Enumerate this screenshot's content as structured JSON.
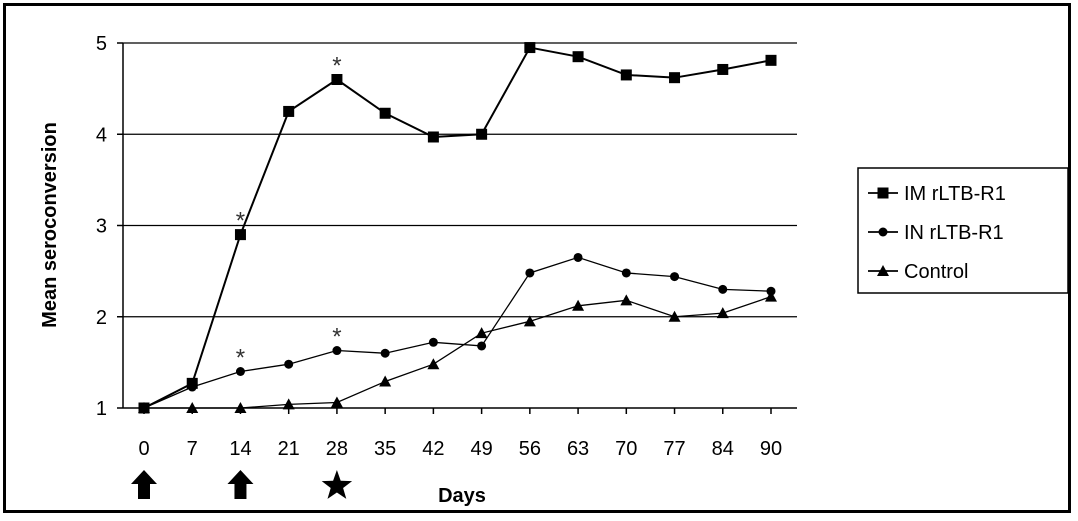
{
  "chart_data": {
    "type": "line",
    "xlabel": "Days",
    "ylabel": "Mean seroconversion",
    "x": [
      0,
      7,
      14,
      21,
      28,
      35,
      42,
      49,
      56,
      63,
      70,
      77,
      84,
      90
    ],
    "x_tick_labels": [
      "0",
      "7",
      "14",
      "21",
      "28",
      "35",
      "42",
      "49",
      "56",
      "63",
      "70",
      "77",
      "84",
      "90"
    ],
    "ylim": [
      1,
      5
    ],
    "y_ticks": [
      1,
      2,
      3,
      4,
      5
    ],
    "y_tick_labels": [
      "1",
      "2",
      "3",
      "4",
      "5"
    ],
    "grid": "horizontal",
    "legend_position": "right",
    "series": [
      {
        "name": "IM rLTB-R1",
        "marker": "square",
        "values": [
          1.0,
          1.27,
          2.9,
          4.25,
          4.6,
          4.23,
          3.97,
          4.0,
          4.95,
          4.85,
          4.65,
          4.62,
          4.71,
          4.81
        ]
      },
      {
        "name": "IN rLTB-R1",
        "marker": "circle",
        "values": [
          1.0,
          1.23,
          1.4,
          1.48,
          1.63,
          1.6,
          1.72,
          1.68,
          2.48,
          2.65,
          2.48,
          2.44,
          2.3,
          2.28
        ]
      },
      {
        "name": "Control",
        "marker": "triangle",
        "values": [
          1.0,
          1.0,
          1.0,
          1.04,
          1.06,
          1.29,
          1.48,
          1.82,
          1.95,
          2.12,
          2.18,
          2.0,
          2.04,
          2.22
        ]
      }
    ],
    "annotations": [
      {
        "text": "*",
        "x": 14,
        "y": 2.9
      },
      {
        "text": "*",
        "x": 28,
        "y": 4.6
      },
      {
        "text": "*",
        "x": 14,
        "y": 1.4
      },
      {
        "text": "*",
        "x": 28,
        "y": 1.63
      }
    ],
    "below_axis_markers": [
      {
        "x": 0,
        "symbol": "up-arrow"
      },
      {
        "x": 14,
        "symbol": "up-arrow"
      },
      {
        "x": 28,
        "symbol": "star"
      }
    ]
  }
}
